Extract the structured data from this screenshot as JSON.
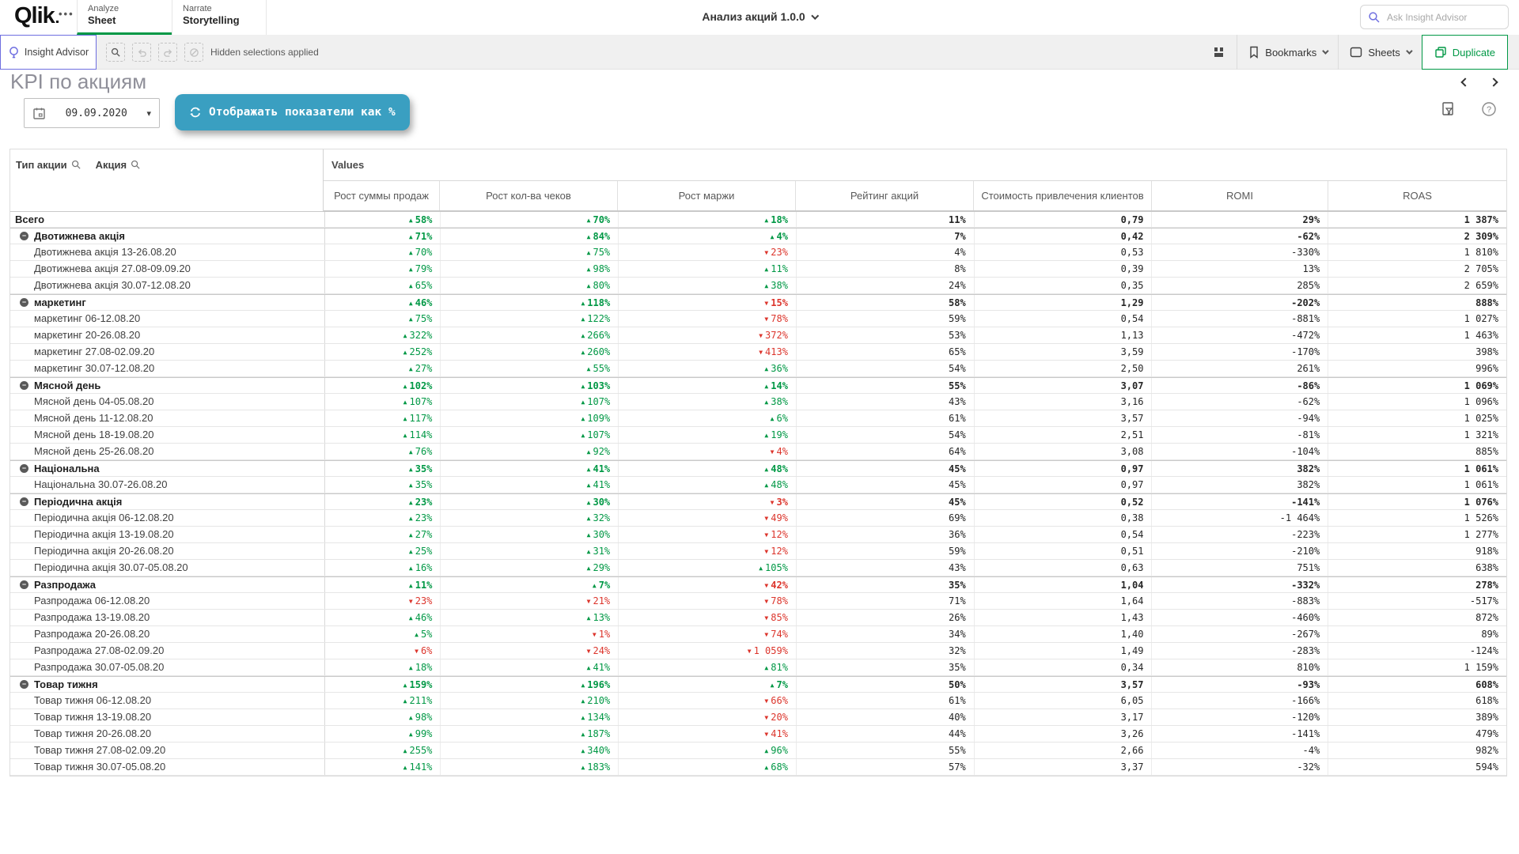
{
  "header": {
    "logo": "Qlik",
    "more_menu": "•••",
    "tabs": [
      {
        "top": "Analyze",
        "bottom": "Sheet"
      },
      {
        "top": "Narrate",
        "bottom": "Storytelling"
      }
    ],
    "app_title": "Анализ акций 1.0.0",
    "search_placeholder": "Ask Insight Advisor"
  },
  "toolbar": {
    "insight_advisor_label": "Insight Advisor",
    "selection_tools": [
      "selections-search-icon",
      "undo-icon",
      "redo-icon",
      "clear-selections-icon"
    ],
    "hidden_selections_text": "Hidden selections applied",
    "bookmarks_label": "Bookmarks",
    "sheets_label": "Sheets",
    "duplicate_label": "Duplicate"
  },
  "sheet": {
    "title": "KPI по акциям",
    "date_value": "09.09.2020",
    "toggle_button_label": "Отображать показатели как %",
    "icons": [
      "filter-export-icon",
      "help-icon"
    ]
  },
  "table": {
    "dim_headers": [
      "Тип акции",
      "Акция"
    ],
    "values_header": "Values",
    "measure_headers": [
      "Рост суммы продаж",
      "Рост кол-ва чеков",
      "Рост маржи",
      "Рейтинг акций",
      "Стоимость привлечения клиентов",
      "ROMI",
      "ROAS"
    ],
    "rows": [
      {
        "label": "Всего",
        "level": "total",
        "cells": [
          "▲58%",
          "▲70%",
          "▲18%",
          "11%",
          "0,79",
          "29%",
          "1 387%"
        ]
      },
      {
        "label": "Двотижнева акція",
        "level": "group",
        "cells": [
          "▲71%",
          "▲84%",
          "▲4%",
          "7%",
          "0,42",
          "-62%",
          "2 309%"
        ]
      },
      {
        "label": "Двотижнева акція 13-26.08.20",
        "level": "leaf",
        "cells": [
          "▲70%",
          "▲75%",
          "▼23%",
          "4%",
          "0,53",
          "-330%",
          "1 810%"
        ]
      },
      {
        "label": "Двотижнева акція 27.08-09.09.20",
        "level": "leaf",
        "cells": [
          "▲79%",
          "▲98%",
          "▲11%",
          "8%",
          "0,39",
          "13%",
          "2 705%"
        ]
      },
      {
        "label": "Двотижнева акція 30.07-12.08.20",
        "level": "leaf",
        "cells": [
          "▲65%",
          "▲80%",
          "▲38%",
          "24%",
          "0,35",
          "285%",
          "2 659%"
        ]
      },
      {
        "label": "маркетинг",
        "level": "group",
        "cells": [
          "▲46%",
          "▲118%",
          "▼15%",
          "58%",
          "1,29",
          "-202%",
          "888%"
        ]
      },
      {
        "label": "маркетинг 06-12.08.20",
        "level": "leaf",
        "cells": [
          "▲75%",
          "▲122%",
          "▼78%",
          "59%",
          "0,54",
          "-881%",
          "1 027%"
        ]
      },
      {
        "label": "маркетинг 20-26.08.20",
        "level": "leaf",
        "cells": [
          "▲322%",
          "▲266%",
          "▼372%",
          "53%",
          "1,13",
          "-472%",
          "1 463%"
        ]
      },
      {
        "label": "маркетинг 27.08-02.09.20",
        "level": "leaf",
        "cells": [
          "▲252%",
          "▲260%",
          "▼413%",
          "65%",
          "3,59",
          "-170%",
          "398%"
        ]
      },
      {
        "label": "маркетинг 30.07-12.08.20",
        "level": "leaf",
        "cells": [
          "▲27%",
          "▲55%",
          "▲36%",
          "54%",
          "2,50",
          "261%",
          "996%"
        ]
      },
      {
        "label": "Мясной день",
        "level": "group",
        "cells": [
          "▲102%",
          "▲103%",
          "▲14%",
          "55%",
          "3,07",
          "-86%",
          "1 069%"
        ]
      },
      {
        "label": "Мясной день 04-05.08.20",
        "level": "leaf",
        "cells": [
          "▲107%",
          "▲107%",
          "▲38%",
          "43%",
          "3,16",
          "-62%",
          "1 096%"
        ]
      },
      {
        "label": "Мясной день 11-12.08.20",
        "level": "leaf",
        "cells": [
          "▲117%",
          "▲109%",
          "▲6%",
          "61%",
          "3,57",
          "-94%",
          "1 025%"
        ]
      },
      {
        "label": "Мясной день 18-19.08.20",
        "level": "leaf",
        "cells": [
          "▲114%",
          "▲107%",
          "▲19%",
          "54%",
          "2,51",
          "-81%",
          "1 321%"
        ]
      },
      {
        "label": "Мясной день 25-26.08.20",
        "level": "leaf",
        "cells": [
          "▲76%",
          "▲92%",
          "▼4%",
          "64%",
          "3,08",
          "-104%",
          "885%"
        ]
      },
      {
        "label": "Національна",
        "level": "group",
        "cells": [
          "▲35%",
          "▲41%",
          "▲48%",
          "45%",
          "0,97",
          "382%",
          "1 061%"
        ]
      },
      {
        "label": "Національна 30.07-26.08.20",
        "level": "leaf",
        "cells": [
          "▲35%",
          "▲41%",
          "▲48%",
          "45%",
          "0,97",
          "382%",
          "1 061%"
        ]
      },
      {
        "label": "Періодична акція",
        "level": "group",
        "cells": [
          "▲23%",
          "▲30%",
          "▼3%",
          "45%",
          "0,52",
          "-141%",
          "1 076%"
        ]
      },
      {
        "label": "Періодична акція 06-12.08.20",
        "level": "leaf",
        "cells": [
          "▲23%",
          "▲32%",
          "▼49%",
          "69%",
          "0,38",
          "-1 464%",
          "1 526%"
        ]
      },
      {
        "label": "Періодична акція 13-19.08.20",
        "level": "leaf",
        "cells": [
          "▲27%",
          "▲30%",
          "▼12%",
          "36%",
          "0,54",
          "-223%",
          "1 277%"
        ]
      },
      {
        "label": "Періодична акція 20-26.08.20",
        "level": "leaf",
        "cells": [
          "▲25%",
          "▲31%",
          "▼12%",
          "59%",
          "0,51",
          "-210%",
          "918%"
        ]
      },
      {
        "label": "Періодична акція 30.07-05.08.20",
        "level": "leaf",
        "cells": [
          "▲16%",
          "▲29%",
          "▲105%",
          "43%",
          "0,63",
          "751%",
          "638%"
        ]
      },
      {
        "label": "Разпродажа",
        "level": "group",
        "cells": [
          "▲11%",
          "▲7%",
          "▼42%",
          "35%",
          "1,04",
          "-332%",
          "278%"
        ]
      },
      {
        "label": "Разпродажа 06-12.08.20",
        "level": "leaf",
        "cells": [
          "▼23%",
          "▼21%",
          "▼78%",
          "71%",
          "1,64",
          "-883%",
          "-517%"
        ]
      },
      {
        "label": "Разпродажа 13-19.08.20",
        "level": "leaf",
        "cells": [
          "▲46%",
          "▲13%",
          "▼85%",
          "26%",
          "1,43",
          "-460%",
          "872%"
        ]
      },
      {
        "label": "Разпродажа 20-26.08.20",
        "level": "leaf",
        "cells": [
          "▲5%",
          "▼1%",
          "▼74%",
          "34%",
          "1,40",
          "-267%",
          "89%"
        ]
      },
      {
        "label": "Разпродажа 27.08-02.09.20",
        "level": "leaf",
        "cells": [
          "▼6%",
          "▼24%",
          "▼1 059%",
          "32%",
          "1,49",
          "-283%",
          "-124%"
        ]
      },
      {
        "label": "Разпродажа 30.07-05.08.20",
        "level": "leaf",
        "cells": [
          "▲18%",
          "▲41%",
          "▲81%",
          "35%",
          "0,34",
          "810%",
          "1 159%"
        ]
      },
      {
        "label": "Товар тижня",
        "level": "group",
        "cells": [
          "▲159%",
          "▲196%",
          "▲7%",
          "50%",
          "3,57",
          "-93%",
          "608%"
        ]
      },
      {
        "label": "Товар тижня 06-12.08.20",
        "level": "leaf",
        "cells": [
          "▲211%",
          "▲210%",
          "▼66%",
          "61%",
          "6,05",
          "-166%",
          "618%"
        ]
      },
      {
        "label": "Товар тижня 13-19.08.20",
        "level": "leaf",
        "cells": [
          "▲98%",
          "▲134%",
          "▼20%",
          "40%",
          "3,17",
          "-120%",
          "389%"
        ]
      },
      {
        "label": "Товар тижня 20-26.08.20",
        "level": "leaf",
        "cells": [
          "▲99%",
          "▲187%",
          "▼41%",
          "44%",
          "3,26",
          "-141%",
          "479%"
        ]
      },
      {
        "label": "Товар тижня 27.08-02.09.20",
        "level": "leaf",
        "cells": [
          "▲255%",
          "▲340%",
          "▲96%",
          "55%",
          "2,66",
          "-4%",
          "982%"
        ]
      },
      {
        "label": "Товар тижня 30.07-05.08.20",
        "level": "leaf",
        "cells": [
          "▲141%",
          "▲183%",
          "▲68%",
          "57%",
          "3,37",
          "-32%",
          "594%"
        ]
      }
    ]
  },
  "colors": {
    "positive_green": "#009845",
    "negative_red": "#DC352C",
    "accent_purple": "#6E6EE0",
    "toggle_button_blue": "#3A9FC1",
    "active_tab_green": "#009845"
  }
}
